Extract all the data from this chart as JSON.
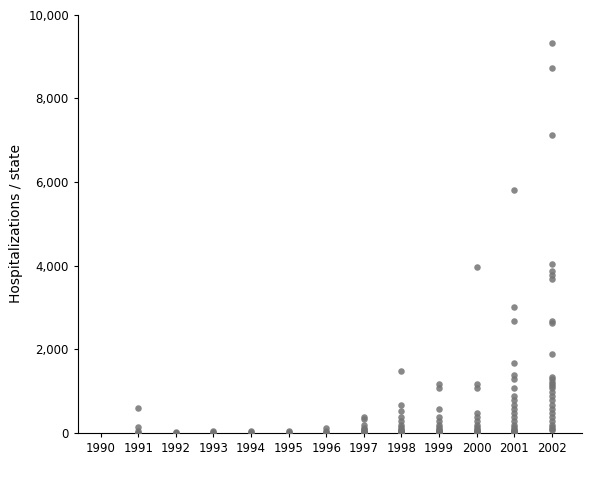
{
  "dot_color": "#737373",
  "background_color": "#ffffff",
  "ylabel": "Hospitalizations / state",
  "ylim": [
    0,
    10000
  ],
  "yticks": [
    0,
    2000,
    4000,
    6000,
    8000,
    10000
  ],
  "xlim": [
    1989.4,
    2002.8
  ],
  "xticks": [
    1990,
    1991,
    1992,
    1993,
    1994,
    1995,
    1996,
    1997,
    1998,
    1999,
    2000,
    2001,
    2002
  ],
  "dot_size": 22,
  "ylabel_fontsize": 10,
  "tick_fontsize": 8.5,
  "data": {
    "1990": [],
    "1991": [
      600,
      150,
      50,
      10,
      5,
      2
    ],
    "1992": [
      30,
      10,
      3
    ],
    "1993": [
      35,
      15,
      4
    ],
    "1994": [
      40,
      18,
      5
    ],
    "1995": [
      55,
      22,
      7
    ],
    "1996": [
      110,
      55,
      18,
      8
    ],
    "1997": [
      380,
      330,
      180,
      130,
      90,
      70,
      45,
      25,
      15,
      10,
      7,
      4
    ],
    "1998": [
      1480,
      680,
      530,
      380,
      280,
      180,
      140,
      90,
      70,
      50,
      35,
      25,
      15,
      10,
      7,
      4
    ],
    "1999": [
      1180,
      1080,
      580,
      380,
      280,
      180,
      140,
      90,
      70,
      50,
      35,
      25,
      15,
      10,
      7,
      4
    ],
    "2000": [
      3980,
      1180,
      1070,
      480,
      380,
      280,
      180,
      140,
      90,
      70,
      50,
      35,
      25,
      15,
      10,
      7,
      4
    ],
    "2001": [
      5820,
      3020,
      2680,
      1680,
      1380,
      1280,
      1080,
      880,
      780,
      680,
      580,
      480,
      380,
      280,
      180,
      140,
      90,
      70,
      50,
      35,
      25,
      15,
      10,
      7,
      4
    ],
    "2002": [
      9330,
      8730,
      7120,
      4030,
      3880,
      3780,
      3680,
      2680,
      2630,
      1880,
      1330,
      1280,
      1230,
      1180,
      1130,
      1080,
      980,
      880,
      780,
      680,
      580,
      480,
      380,
      280,
      180,
      140,
      90,
      70
    ]
  }
}
